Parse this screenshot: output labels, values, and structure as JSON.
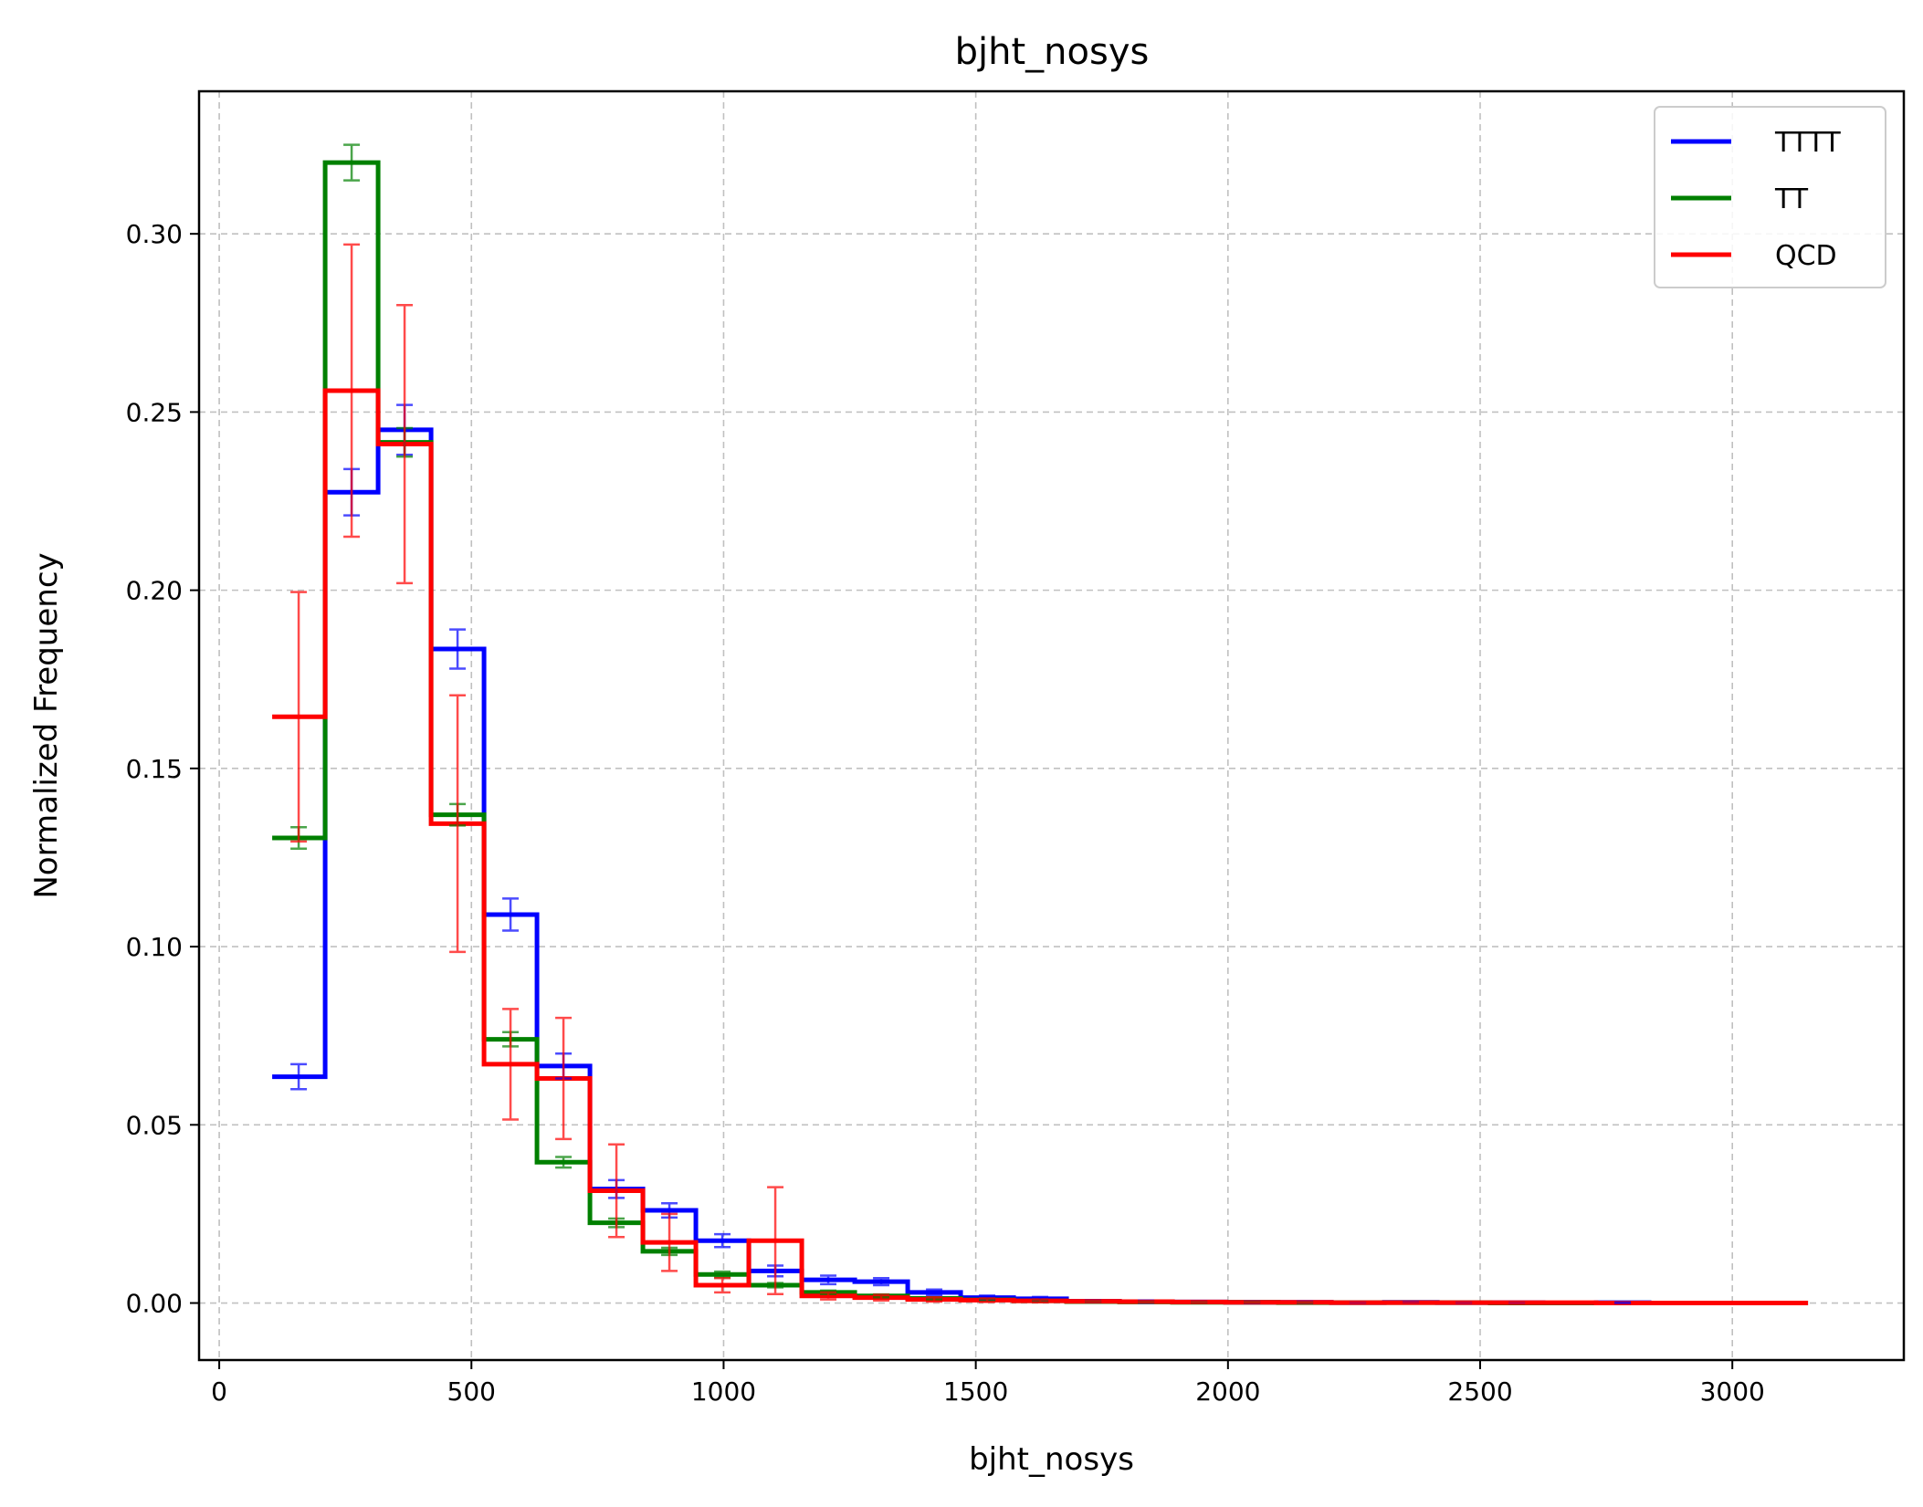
{
  "chart_data": {
    "type": "histogram-step",
    "title": "bjht_nosys",
    "xlabel": "bjht_nosys",
    "ylabel": "Normalized Frequency",
    "xlim": [
      -40,
      3340
    ],
    "ylim": [
      -0.016,
      0.34
    ],
    "xticks": [
      0,
      500,
      1000,
      1500,
      2000,
      2500,
      3000
    ],
    "xtick_labels": [
      "0",
      "500",
      "1000",
      "1500",
      "2000",
      "2500",
      "3000"
    ],
    "yticks": [
      0.0,
      0.05,
      0.1,
      0.15,
      0.2,
      0.25,
      0.3
    ],
    "ytick_labels": [
      "0.00",
      "0.05",
      "0.10",
      "0.15",
      "0.20",
      "0.25",
      "0.30"
    ],
    "grid": true,
    "legend_position": "top-right",
    "bin_edges": [
      105,
      210,
      315,
      420,
      525,
      630,
      735,
      840,
      945,
      1050,
      1155,
      1260,
      1365,
      1470,
      1575,
      1680,
      1785,
      1890,
      1995,
      2100,
      2205,
      2310,
      2415,
      2520,
      2625,
      2730,
      2835,
      2940,
      3045,
      3150
    ],
    "series": [
      {
        "name": "TTTT",
        "color": "#0000ff",
        "values": [
          0.0635,
          0.2275,
          0.245,
          0.1835,
          0.109,
          0.0665,
          0.032,
          0.026,
          0.0175,
          0.009,
          0.0065,
          0.006,
          0.003,
          0.0015,
          0.0012,
          0.0005,
          0.0004,
          0.0003,
          0.0002,
          0.0002,
          0.0001,
          0.0002,
          0.0001,
          0.0001,
          0.0,
          0.0001,
          0.0,
          0.0,
          0.0
        ],
        "errors": [
          0.0035,
          0.0065,
          0.007,
          0.0055,
          0.0045,
          0.0035,
          0.0025,
          0.002,
          0.0018,
          0.0015,
          0.0012,
          0.001,
          0.0008,
          0.0006,
          0.0005,
          0.0003,
          0.0003,
          0.0002,
          0.0002,
          0.0002,
          0.0001,
          0.0001,
          0.0001,
          0.0001,
          0.0,
          0.0001,
          0.0,
          0.0,
          0.0
        ]
      },
      {
        "name": "TT",
        "color": "#008000",
        "values": [
          0.1305,
          0.32,
          0.2415,
          0.137,
          0.074,
          0.0395,
          0.0225,
          0.0145,
          0.008,
          0.005,
          0.003,
          0.002,
          0.0013,
          0.0009,
          0.0006,
          0.0004,
          0.0003,
          0.0002,
          0.0002,
          0.0001,
          0.0001,
          0.0001,
          0.0001,
          0.0,
          0.0,
          0.0,
          0.0,
          0.0,
          0.0
        ],
        "errors": [
          0.003,
          0.005,
          0.004,
          0.003,
          0.002,
          0.0015,
          0.0012,
          0.001,
          0.0008,
          0.0006,
          0.0005,
          0.0004,
          0.0003,
          0.0002,
          0.0002,
          0.0001,
          0.0001,
          0.0001,
          0.0001,
          0.0001,
          0.0,
          0.0,
          0.0,
          0.0,
          0.0,
          0.0,
          0.0,
          0.0,
          0.0
        ]
      },
      {
        "name": "QCD",
        "color": "#ff0000",
        "values": [
          0.1645,
          0.256,
          0.241,
          0.1345,
          0.067,
          0.063,
          0.0315,
          0.017,
          0.005,
          0.0175,
          0.002,
          0.0015,
          0.001,
          0.0008,
          0.0006,
          0.0005,
          0.0004,
          0.0003,
          0.0002,
          0.0002,
          0.0001,
          0.0001,
          0.0001,
          0.0001,
          0.0001,
          0.0,
          0.0,
          0.0,
          0.0
        ],
        "errors": [
          0.035,
          0.041,
          0.039,
          0.036,
          0.0155,
          0.017,
          0.013,
          0.008,
          0.002,
          0.015,
          0.001,
          0.0008,
          0.0006,
          0.0005,
          0.0004,
          0.0003,
          0.0002,
          0.0002,
          0.0001,
          0.0001,
          0.0001,
          0.0001,
          0.0001,
          0.0001,
          0.0001,
          0.0,
          0.0,
          0.0,
          0.0
        ]
      }
    ]
  }
}
